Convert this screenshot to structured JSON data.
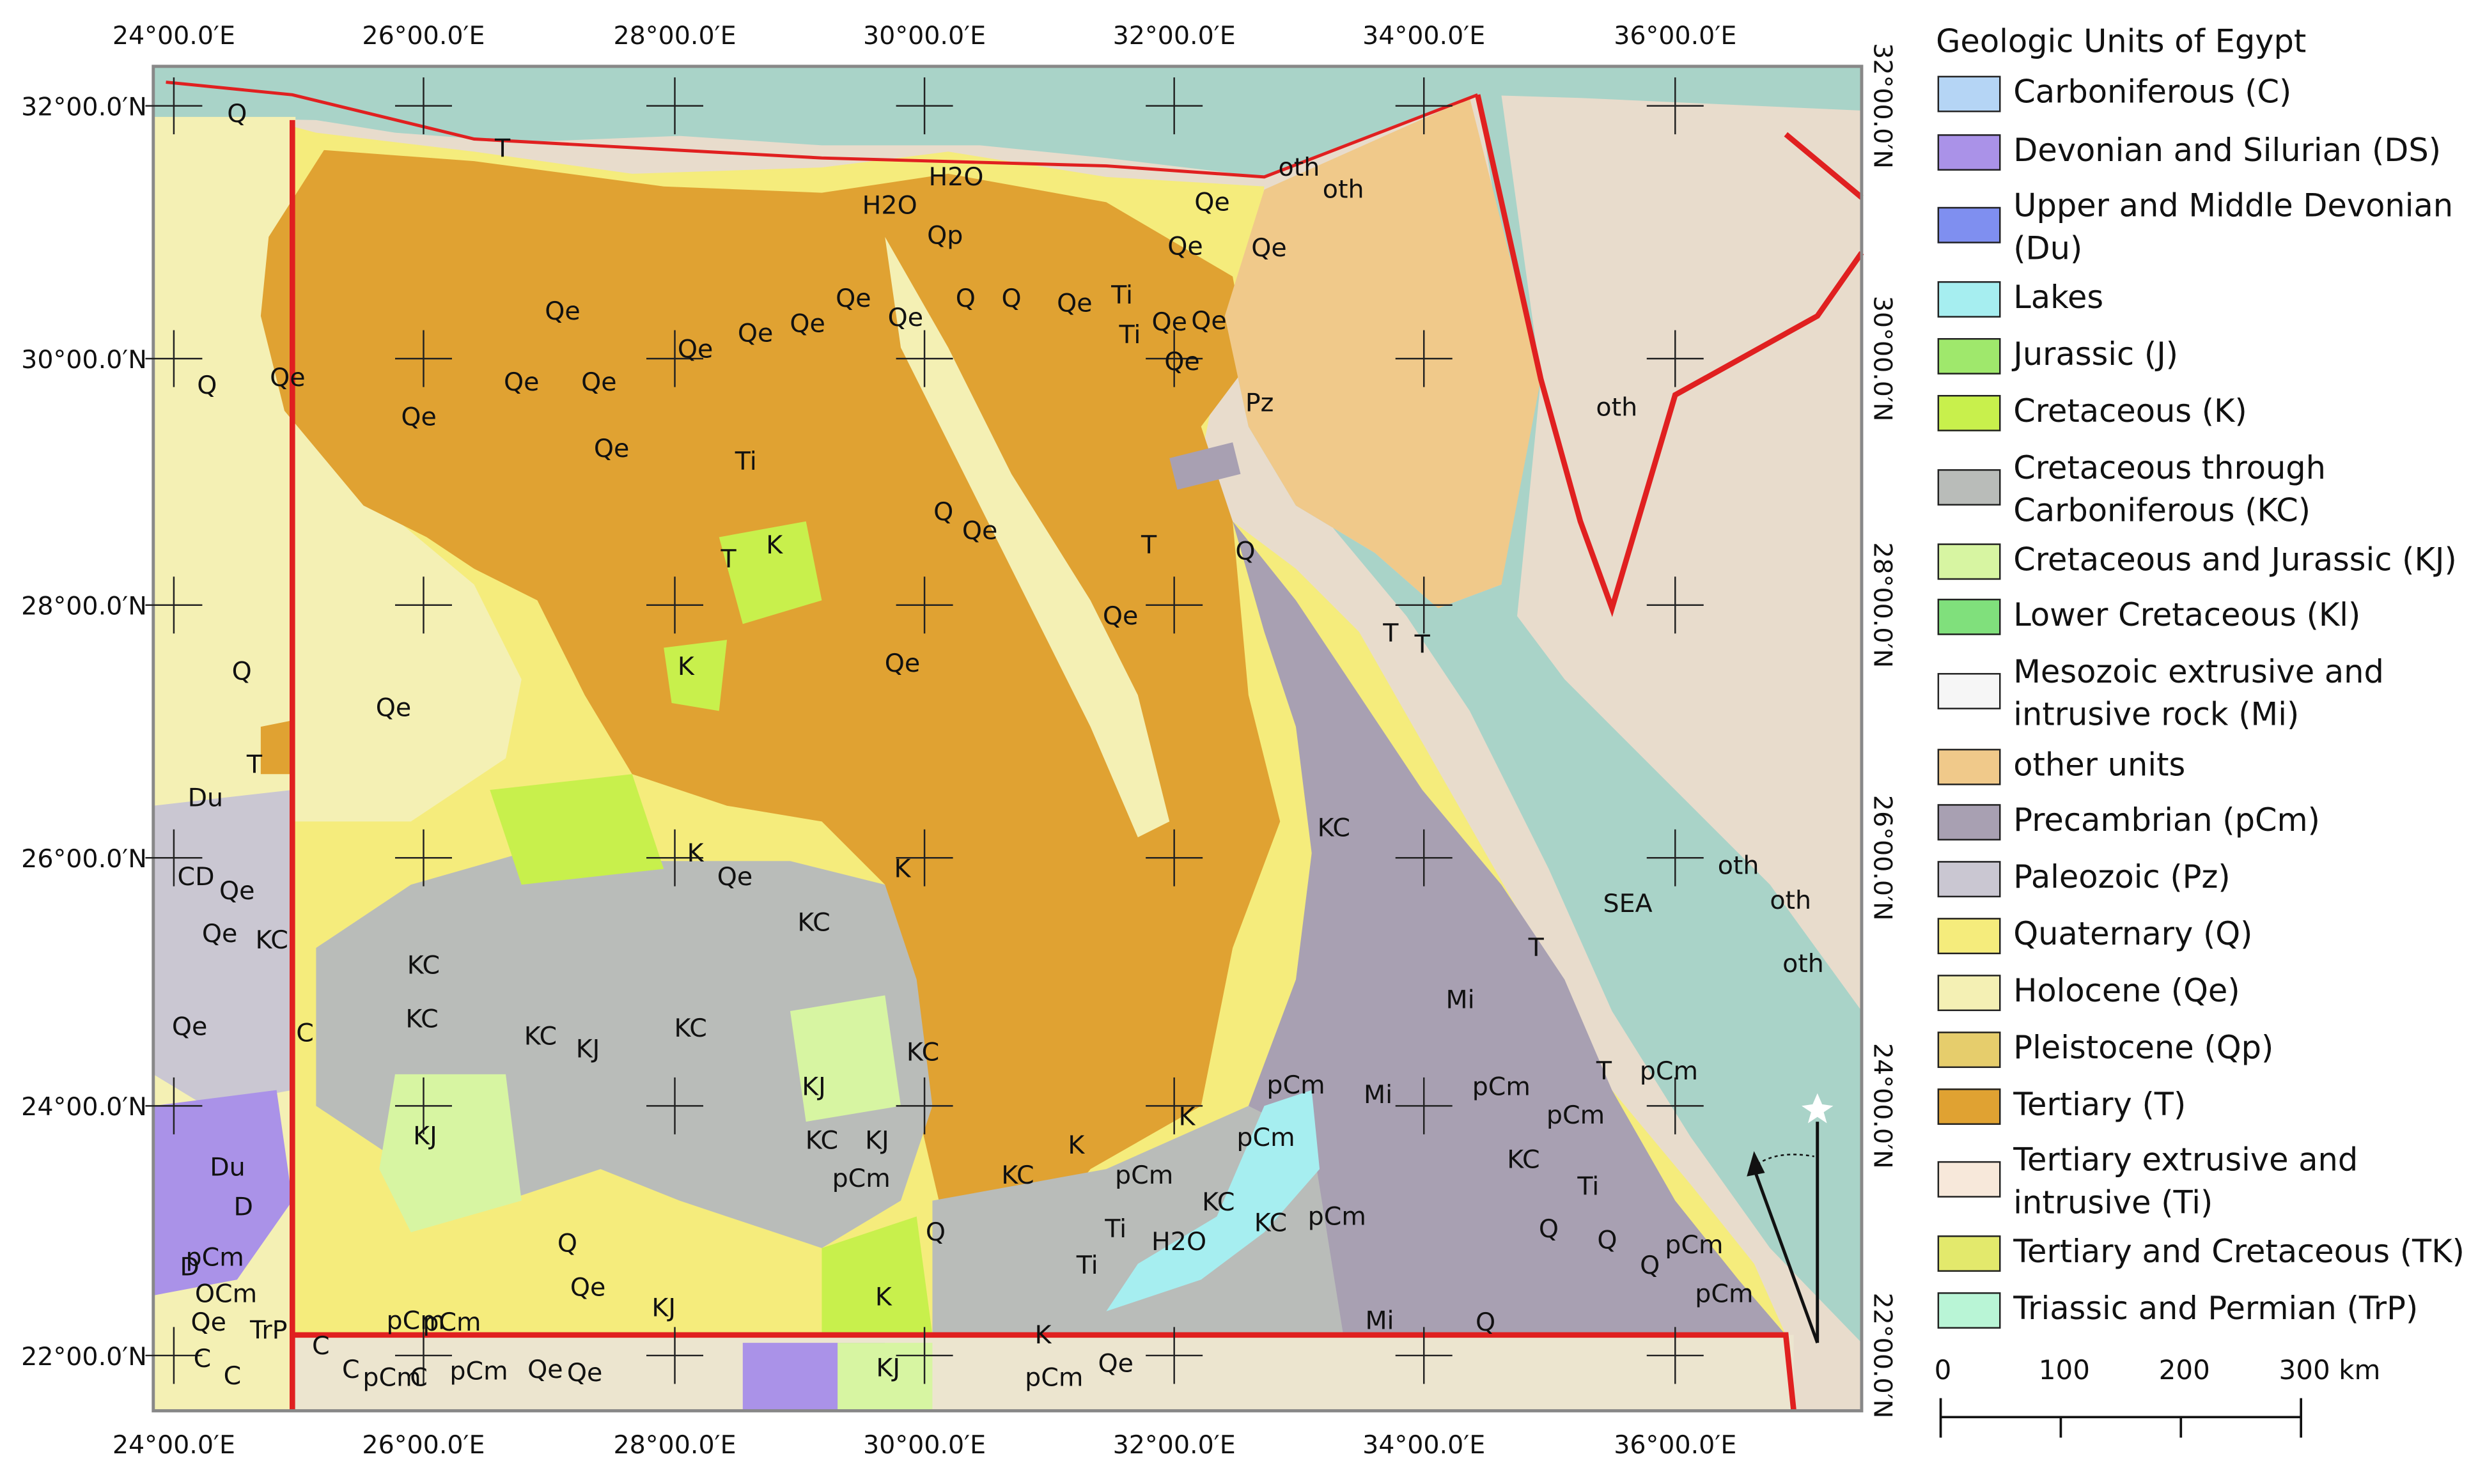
{
  "map": {
    "lon_labels": [
      "24°00.0′E",
      "26°00.0′E",
      "28°00.0′E",
      "30°00.0′E",
      "32°00.0′E",
      "34°00.0′E",
      "36°00.0′E"
    ],
    "lat_labels": [
      "32°00.0′N",
      "30°00.0′N",
      "28°00.0′N",
      "26°00.0′N",
      "24°00.0′N",
      "22°00.0′N"
    ],
    "labels": [
      "Q",
      "T",
      "H2O",
      "H2O",
      "Qp",
      "oth",
      "oth",
      "Qe",
      "Qe",
      "Qe",
      "Q",
      "Qe",
      "Qe",
      "Qe",
      "Qe",
      "Qe",
      "Qe",
      "Qe",
      "Qe",
      "Qe",
      "Qe",
      "Q",
      "Q",
      "Qe",
      "Ti",
      "Ti",
      "Qe",
      "Qe",
      "Qe",
      "Ti",
      "Pz",
      "oth",
      "Qe",
      "Q",
      "Qe",
      "T",
      "K",
      "T",
      "Q",
      "Q",
      "Qe",
      "K",
      "Qe",
      "Qe",
      "T",
      "Du",
      "CD",
      "Qe",
      "Qe",
      "KC",
      "K",
      "Qe",
      "KC",
      "K",
      "KC",
      "SEA",
      "oth",
      "oth",
      "oth",
      "Qe",
      "C",
      "KC",
      "KC",
      "KC",
      "KJ",
      "KC",
      "KC",
      "KJ",
      "Mi",
      "pCm",
      "pCm",
      "pCm",
      "pCm",
      "Mi",
      "pCm",
      "KC",
      "Du",
      "D",
      "D",
      "pCm",
      "OCm",
      "Qe",
      "TrP",
      "C",
      "C",
      "KJ",
      "KC",
      "KJ",
      "pCm",
      "KC",
      "K",
      "K",
      "pCm",
      "KC",
      "KC",
      "pCm",
      "H2O",
      "Ti",
      "Ti",
      "Q",
      "Q",
      "Qe",
      "KJ",
      "K",
      "pCm",
      "pCm",
      "pCm",
      "C",
      "C",
      "C",
      "pCm",
      "Qe",
      "Qe",
      "KJ",
      "K",
      "pCm",
      "Qe",
      "Mi",
      "Q",
      "Ti",
      "Q",
      "Q",
      "Q",
      "pCm",
      "pCm",
      "T",
      "T",
      "T",
      "T"
    ]
  },
  "legend": {
    "title": "Geologic Units of Egypt",
    "items": [
      {
        "label": "Carboniferous (C)",
        "color": "#b5d5f5"
      },
      {
        "label": "Devonian and Silurian (DS)",
        "color": "#aa92e8"
      },
      {
        "label": "Upper and Middle Devonian (Du)",
        "color": "#7f8ff0"
      },
      {
        "label": "Lakes",
        "color": "#a6eef0"
      },
      {
        "label": "Jurassic (J)",
        "color": "#9fe86c"
      },
      {
        "label": "Cretaceous (K)",
        "color": "#c8f04c"
      },
      {
        "label": "Cretaceous through Carboniferous (KC)",
        "color": "#b9bcb9"
      },
      {
        "label": "Cretaceous and Jurassic (KJ)",
        "color": "#d7f5a2"
      },
      {
        "label": "Lower Cretaceous (Kl)",
        "color": "#80e07c"
      },
      {
        "label": "Mesozoic extrusive and intrusive rock (Mi)",
        "color": "#f6f6f6"
      },
      {
        "label": "other units",
        "color": "#f0c98a"
      },
      {
        "label": "Precambrian (pCm)",
        "color": "#a8a0b2"
      },
      {
        "label": "Paleozoic (Pz)",
        "color": "#cac7d2"
      },
      {
        "label": "Quaternary (Q)",
        "color": "#f5ec7c"
      },
      {
        "label": "Holocene (Qe)",
        "color": "#f4f0b4"
      },
      {
        "label": "Pleistocene (Qp)",
        "color": "#e6cd6c"
      },
      {
        "label": "Tertiary (T)",
        "color": "#e0a232"
      },
      {
        "label": "Tertiary extrusive and intrusive (Ti)",
        "color": "#f7e8da"
      },
      {
        "label": "Tertiary and Cretaceous (TK)",
        "color": "#e3e96c"
      },
      {
        "label": "Triassic and Permian (TrP)",
        "color": "#b9f5d6"
      }
    ]
  },
  "scale_bar": {
    "labels": [
      "0",
      "100",
      "200",
      "300 km"
    ]
  }
}
